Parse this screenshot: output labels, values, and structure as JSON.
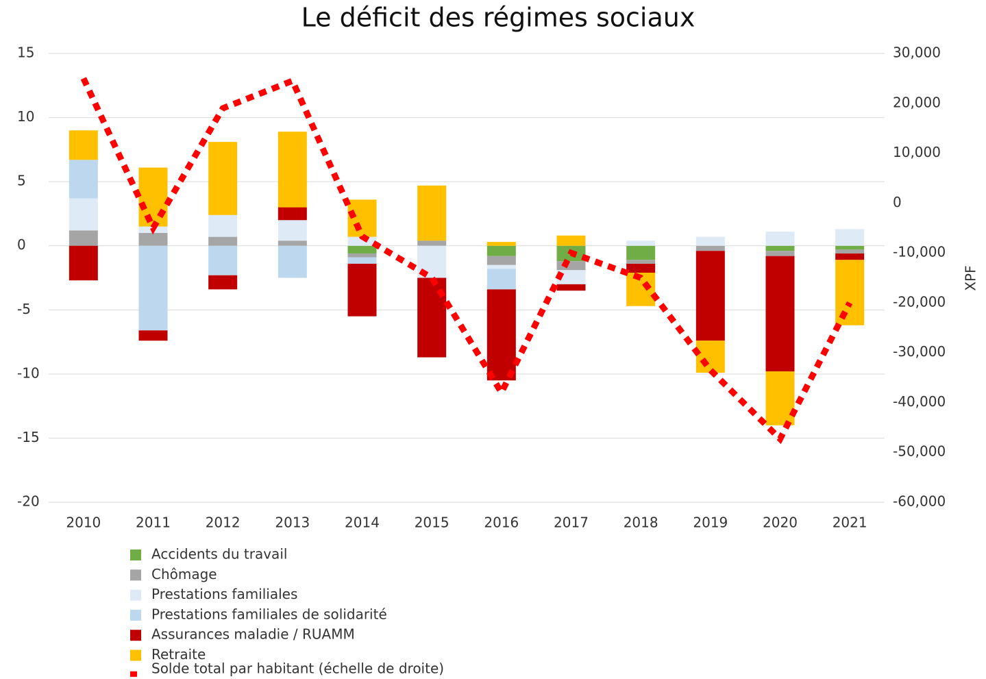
{
  "chart_data": {
    "type": "bar",
    "title": "Le déficit des régimes sociaux",
    "y2_label": "XPF",
    "categories": [
      "2010",
      "2011",
      "2012",
      "2013",
      "2014",
      "2015",
      "2016",
      "2017",
      "2018",
      "2019",
      "2020",
      "2021"
    ],
    "series": [
      {
        "name": "Accidents du travail",
        "color": "#70ad47",
        "values": [
          0,
          0,
          0,
          0,
          -0.6,
          0,
          -0.8,
          -1.2,
          -1.1,
          0,
          -0.4,
          -0.3
        ]
      },
      {
        "name": "Chômage",
        "color": "#a5a5a5",
        "values": [
          1.2,
          1.0,
          0.7,
          0.4,
          -0.3,
          0.4,
          -0.7,
          -0.7,
          -0.3,
          -0.4,
          -0.4,
          -0.3
        ]
      },
      {
        "name": "Prestations familiales",
        "color": "#deebf7",
        "values": [
          2.5,
          0.5,
          1.7,
          1.6,
          0.7,
          -2.5,
          -0.3,
          -1.1,
          0.4,
          0.7,
          1.1,
          1.3
        ]
      },
      {
        "name": "Prestations familiales de solidarité",
        "color": "#bdd7ee",
        "values": [
          3.0,
          -6.6,
          -2.3,
          -2.5,
          -0.5,
          0,
          -1.6,
          0,
          0,
          0,
          0,
          0
        ]
      },
      {
        "name": "Assurances maladie / RUAMM",
        "color": "#c00000",
        "values": [
          -2.7,
          -0.8,
          -1.1,
          1.0,
          -4.1,
          -6.2,
          -7.1,
          -0.5,
          -0.7,
          -7.0,
          -9.0,
          -0.5
        ]
      },
      {
        "name": "Retraite",
        "color": "#ffc000",
        "values": [
          2.3,
          4.6,
          5.7,
          5.9,
          2.9,
          4.3,
          0.3,
          0.8,
          -2.6,
          -2.5,
          -4.2,
          -5.1
        ]
      },
      {
        "name": "Solde total par habitant (échelle de droite)",
        "color": "#ff0000",
        "type": "line",
        "axis": "y2",
        "values": [
          25000,
          -5000,
          19000,
          24500,
          -6700,
          -15000,
          -38000,
          -10000,
          -15000,
          -33500,
          -47300,
          -20000
        ]
      }
    ],
    "ylim": [
      -20,
      15
    ],
    "yticks": [
      15,
      10,
      5,
      0,
      -5,
      -10,
      -15,
      -20
    ],
    "y2lim": [
      -60000,
      30000
    ],
    "y2ticks": [
      {
        "value": 30000,
        "label": "30,000"
      },
      {
        "value": 20000,
        "label": "20,000"
      },
      {
        "value": 10000,
        "label": "10,000"
      },
      0,
      {
        "value": -10000,
        "label": "-10,000"
      },
      {
        "value": -20000,
        "label": "-20,000"
      },
      {
        "value": -30000,
        "label": "-30,000"
      },
      {
        "value": -40000,
        "label": "-40,000"
      },
      {
        "value": -50000,
        "label": "-50,000"
      },
      {
        "value": -60000,
        "label": "-60,000"
      }
    ],
    "grid": true,
    "stacked": true,
    "legend": "bottom-left"
  }
}
